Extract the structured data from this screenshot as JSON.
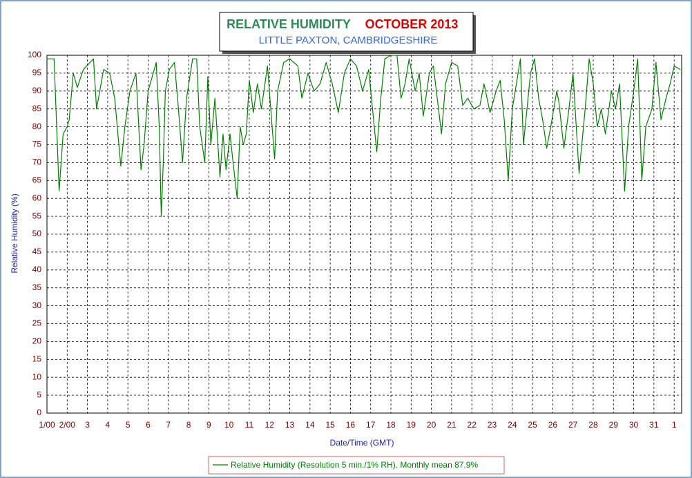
{
  "chart_data": {
    "type": "line",
    "title": "RELATIVE HUMIDITY",
    "title_month": "OCTOBER 2013",
    "subtitle": "LITTLE PAXTON, CAMBRIDGESHIRE",
    "x_label": "Date/Time (GMT)",
    "y_label": "Relative Humidity (%)",
    "x": [
      0,
      0.35,
      0.6,
      0.8,
      1.0,
      1.1,
      1.3,
      1.5,
      1.8,
      2.3,
      2.45,
      2.8,
      3.1,
      3.35,
      3.65,
      3.85,
      4.1,
      4.4,
      4.65,
      4.8,
      5.0,
      5.4,
      5.55,
      5.65,
      5.75,
      5.85,
      6.05,
      6.3,
      6.5,
      6.7,
      6.9,
      7.2,
      7.4,
      7.55,
      7.8,
      7.95,
      8.1,
      8.3,
      8.55,
      8.7,
      8.85,
      9.05,
      9.2,
      9.4,
      9.55,
      9.7,
      9.85,
      10.0,
      10.2,
      10.4,
      10.6,
      10.9,
      11.25,
      11.4,
      11.7,
      12.0,
      12.4,
      12.6,
      12.9,
      13.2,
      13.5,
      13.8,
      14.1,
      14.4,
      14.7,
      15.0,
      15.3,
      15.6,
      15.9,
      16.3,
      16.5,
      16.7,
      17.0,
      17.3,
      17.5,
      17.7,
      17.9,
      18.2,
      18.4,
      18.6,
      18.9,
      19.1,
      19.5,
      19.7,
      20.0,
      20.3,
      20.55,
      20.8,
      21.1,
      21.4,
      21.6,
      21.9,
      22.2,
      22.4,
      22.6,
      22.8,
      23.0,
      23.2,
      23.4,
      23.55,
      23.9,
      24.1,
      24.3,
      24.5,
      24.7,
      24.9,
      25.2,
      25.3,
      25.55,
      25.8,
      26.0,
      26.3,
      26.6,
      26.8,
      27.0,
      27.2,
      27.4,
      27.6,
      27.9,
      28.1,
      28.3,
      28.55,
      28.75,
      29.0,
      29.2,
      29.4,
      29.6,
      29.9,
      30.1,
      30.35,
      30.6,
      30.8,
      31.0,
      31.3
    ],
    "series": [
      {
        "name": "Relative Humidity (Resolution 5 min./1% RH). Monthly mean 87.9%",
        "color": "#008000",
        "values": [
          99,
          99,
          62,
          78,
          80,
          82,
          95,
          91,
          96,
          99,
          85,
          96,
          95,
          88,
          69,
          80,
          90,
          95,
          68,
          75,
          90,
          98,
          80,
          55,
          70,
          90,
          96,
          98,
          85,
          70,
          88,
          99,
          99,
          80,
          70,
          94,
          75,
          88,
          66,
          78,
          68,
          78,
          70,
          60,
          80,
          75,
          78,
          93,
          84,
          92,
          85,
          97,
          71,
          90,
          98,
          99,
          97,
          88,
          95,
          90,
          92,
          98,
          92,
          84,
          95,
          99,
          97,
          90,
          96,
          73,
          88,
          99,
          100,
          100,
          88,
          92,
          99,
          90,
          95,
          83,
          95,
          97,
          78,
          92,
          98,
          97,
          86,
          88,
          85,
          86,
          92,
          84,
          90,
          93,
          82,
          65,
          85,
          92,
          99,
          75,
          95,
          99,
          88,
          82,
          74,
          80,
          90,
          87,
          74,
          85,
          95,
          67,
          85,
          99,
          92,
          80,
          85,
          78,
          90,
          85,
          92,
          62,
          80,
          90,
          99,
          65,
          80,
          85,
          98,
          82,
          88,
          92,
          97,
          96
        ]
      }
    ],
    "xlim": [
      0,
      31.37
    ],
    "xticks": [
      {
        "value": 0,
        "label": "1/00"
      },
      {
        "value": 1,
        "label": "2/00"
      },
      {
        "value": 2,
        "label": "3"
      },
      {
        "value": 3,
        "label": "4"
      },
      {
        "value": 4,
        "label": "5"
      },
      {
        "value": 5,
        "label": "6"
      },
      {
        "value": 6,
        "label": "7"
      },
      {
        "value": 7,
        "label": "8"
      },
      {
        "value": 8,
        "label": "9"
      },
      {
        "value": 9,
        "label": "10"
      },
      {
        "value": 10,
        "label": "11"
      },
      {
        "value": 11,
        "label": "12"
      },
      {
        "value": 12,
        "label": "13"
      },
      {
        "value": 13,
        "label": "14"
      },
      {
        "value": 14,
        "label": "15"
      },
      {
        "value": 15,
        "label": "16"
      },
      {
        "value": 16,
        "label": "17"
      },
      {
        "value": 17,
        "label": "18"
      },
      {
        "value": 18,
        "label": "19"
      },
      {
        "value": 19,
        "label": "20"
      },
      {
        "value": 20,
        "label": "21"
      },
      {
        "value": 21,
        "label": "22"
      },
      {
        "value": 22,
        "label": "23"
      },
      {
        "value": 23,
        "label": "24"
      },
      {
        "value": 24,
        "label": "25"
      },
      {
        "value": 25,
        "label": "26"
      },
      {
        "value": 26,
        "label": "27"
      },
      {
        "value": 27,
        "label": "28"
      },
      {
        "value": 28,
        "label": "29"
      },
      {
        "value": 29,
        "label": "30"
      },
      {
        "value": 30,
        "label": "31"
      },
      {
        "value": 31,
        "label": "1"
      }
    ],
    "ylim": [
      0,
      100
    ],
    "yticks": [
      0,
      5,
      10,
      15,
      20,
      25,
      30,
      35,
      40,
      45,
      50,
      55,
      60,
      65,
      70,
      75,
      80,
      85,
      90,
      95,
      100
    ],
    "grid": true
  }
}
